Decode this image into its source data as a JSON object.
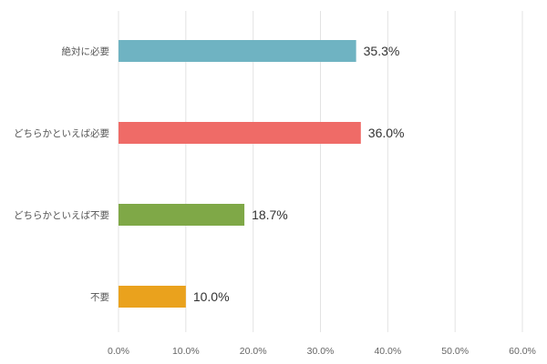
{
  "chart_data": {
    "type": "bar",
    "orientation": "horizontal",
    "title": "",
    "xlabel": "",
    "ylabel": "",
    "categories": [
      "絶対に必要",
      "どちらかといえば必要",
      "どちらかといえば不要",
      "不要"
    ],
    "values": [
      35.3,
      36.0,
      18.7,
      10.0
    ],
    "value_labels": [
      "35.3%",
      "36.0%",
      "18.7%",
      "10.0%"
    ],
    "bar_colors": [
      "#6fb3c2",
      "#ef6b67",
      "#7fa847",
      "#eaa21d"
    ],
    "xlim": [
      0,
      60
    ],
    "x_ticks": [
      0,
      10,
      20,
      30,
      40,
      50,
      60
    ],
    "x_tick_labels": [
      "0.0%",
      "10.0%",
      "20.0%",
      "30.0%",
      "40.0%",
      "50.0%",
      "60.0%"
    ],
    "grid": true,
    "grid_color": "#e3e3e3",
    "legend": "none"
  }
}
